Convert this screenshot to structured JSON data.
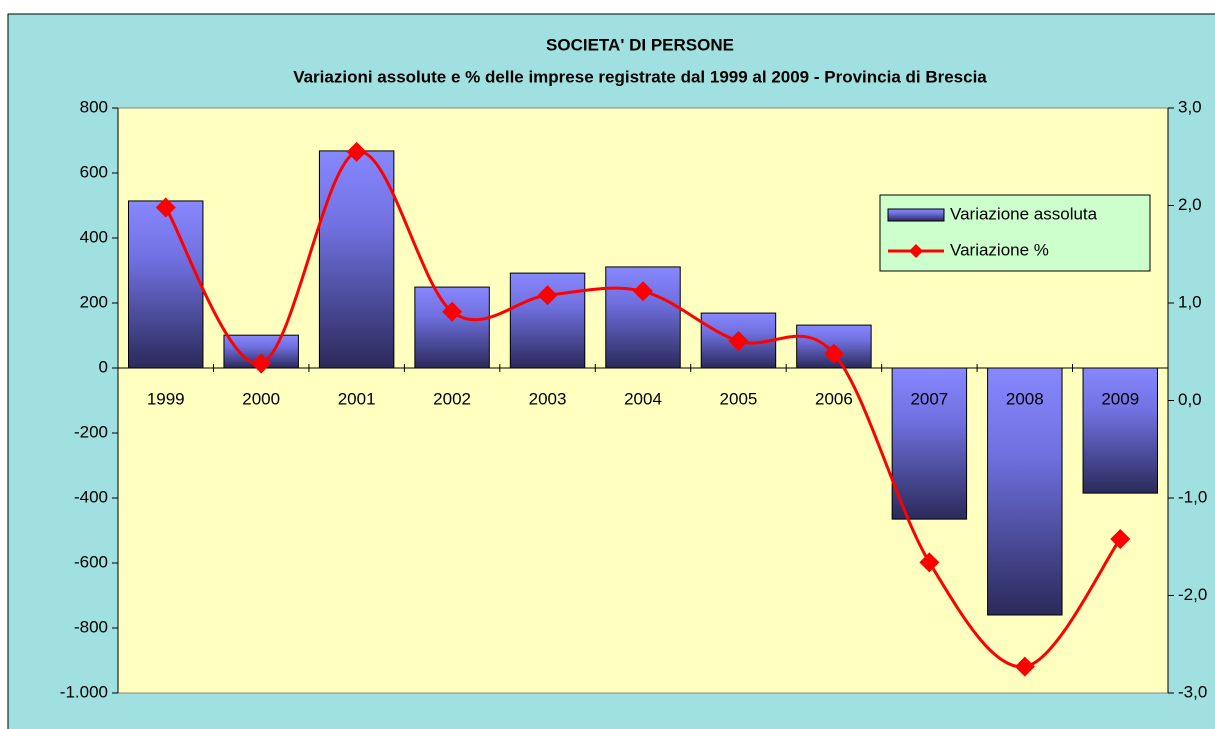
{
  "chart_data": {
    "type": "bar-line",
    "title": "SOCIETA' DI PERSONE",
    "subtitle": "Variazioni assolute e % delle imprese registrate dal 1999 al 2009 - Provincia di Brescia",
    "categories": [
      "1999",
      "2000",
      "2001",
      "2002",
      "2003",
      "2004",
      "2005",
      "2006",
      "2007",
      "2008",
      "2009"
    ],
    "series": [
      {
        "name": "Variazione assoluta",
        "type": "bar",
        "color": "#8080ff",
        "axis": "y",
        "values": [
          514,
          101,
          668,
          249,
          292,
          311,
          169,
          132,
          -465,
          -760,
          -385
        ]
      },
      {
        "name": "Variazione %",
        "type": "line",
        "color": "#ff0000",
        "axis": "y2",
        "values": [
          1.98,
          0.38,
          2.55,
          0.91,
          1.08,
          1.12,
          0.61,
          0.48,
          -1.66,
          -2.73,
          -1.42
        ]
      }
    ],
    "ylim": [
      -1000,
      800
    ],
    "yticks": [
      {
        "value": -1000,
        "label": "-1.000"
      },
      -800,
      -600,
      -400,
      -200,
      0,
      200,
      400,
      600,
      800
    ],
    "y2lim": [
      -3,
      3
    ],
    "y2ticks": [
      {
        "value": -3,
        "label": "-3,0"
      },
      {
        "value": -2,
        "label": "-2,0"
      },
      {
        "value": -1,
        "label": "-1,0"
      },
      {
        "value": 0,
        "label": "0,0"
      },
      {
        "value": 1,
        "label": "1,0"
      },
      {
        "value": 2,
        "label": "2,0"
      },
      {
        "value": 3,
        "label": "3,0"
      }
    ],
    "legend": "right"
  }
}
